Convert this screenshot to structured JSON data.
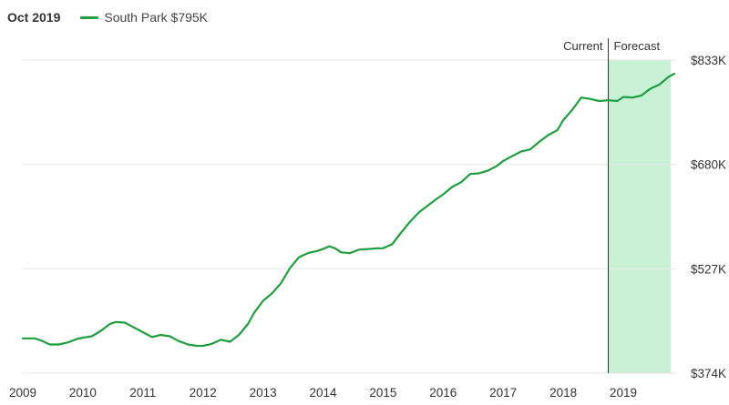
{
  "header": {
    "date": "Oct 2019",
    "legend_label": "South Park $795K"
  },
  "colors": {
    "line": "#1e9e3e",
    "forecast_fill": "#c9f1d5",
    "grid": "#e6e6e6"
  },
  "chart_data": {
    "type": "line",
    "title": "",
    "xlabel": "",
    "ylabel": "",
    "x_ticks": [
      "2009",
      "2010",
      "2011",
      "2012",
      "2013",
      "2014",
      "2015",
      "2016",
      "2017",
      "2018",
      "2019"
    ],
    "y_ticks": [
      "$833K",
      "$680K",
      "$527K",
      "$374K"
    ],
    "y_tick_values": [
      833,
      680,
      527,
      374
    ],
    "ylim": [
      374,
      833
    ],
    "xlim": [
      2009.0,
      2019.85
    ],
    "grid": true,
    "legend_position": "top-left",
    "region_labels": {
      "current": "Current",
      "forecast": "Forecast"
    },
    "forecast_start": 2018.75,
    "series": [
      {
        "name": "South Park $795K",
        "x": [
          2009.0,
          2009.2,
          2009.3,
          2009.45,
          2009.6,
          2009.75,
          2009.9,
          2010.0,
          2010.15,
          2010.3,
          2010.45,
          2010.55,
          2010.7,
          2010.85,
          2011.0,
          2011.15,
          2011.3,
          2011.45,
          2011.6,
          2011.75,
          2011.9,
          2012.0,
          2012.15,
          2012.3,
          2012.45,
          2012.6,
          2012.75,
          2012.85,
          2013.0,
          2013.15,
          2013.3,
          2013.45,
          2013.6,
          2013.75,
          2013.9,
          2014.0,
          2014.1,
          2014.2,
          2014.3,
          2014.45,
          2014.6,
          2014.75,
          2014.9,
          2015.0,
          2015.15,
          2015.3,
          2015.45,
          2015.6,
          2015.75,
          2015.9,
          2016.0,
          2016.15,
          2016.3,
          2016.45,
          2016.6,
          2016.75,
          2016.9,
          2017.0,
          2017.1,
          2017.3,
          2017.45,
          2017.6,
          2017.75,
          2017.9,
          2018.0,
          2018.15,
          2018.3,
          2018.45,
          2018.6,
          2018.75,
          2018.9,
          2019.0,
          2019.15,
          2019.3,
          2019.45,
          2019.6,
          2019.75,
          2019.85
        ],
        "values": [
          425,
          425,
          422,
          416,
          416,
          419,
          424,
          426,
          428,
          436,
          446,
          449,
          448,
          441,
          434,
          427,
          430,
          428,
          421,
          416,
          414,
          414,
          417,
          423,
          420,
          430,
          446,
          462,
          480,
          491,
          506,
          528,
          544,
          550,
          553,
          556,
          560,
          557,
          551,
          550,
          555,
          556,
          557,
          557,
          563,
          580,
          596,
          610,
          620,
          630,
          636,
          647,
          654,
          666,
          667,
          671,
          678,
          685,
          690,
          699,
          702,
          713,
          723,
          730,
          745,
          760,
          778,
          776,
          773,
          774,
          773,
          779,
          778,
          781,
          791,
          797,
          808,
          813
        ]
      }
    ]
  }
}
